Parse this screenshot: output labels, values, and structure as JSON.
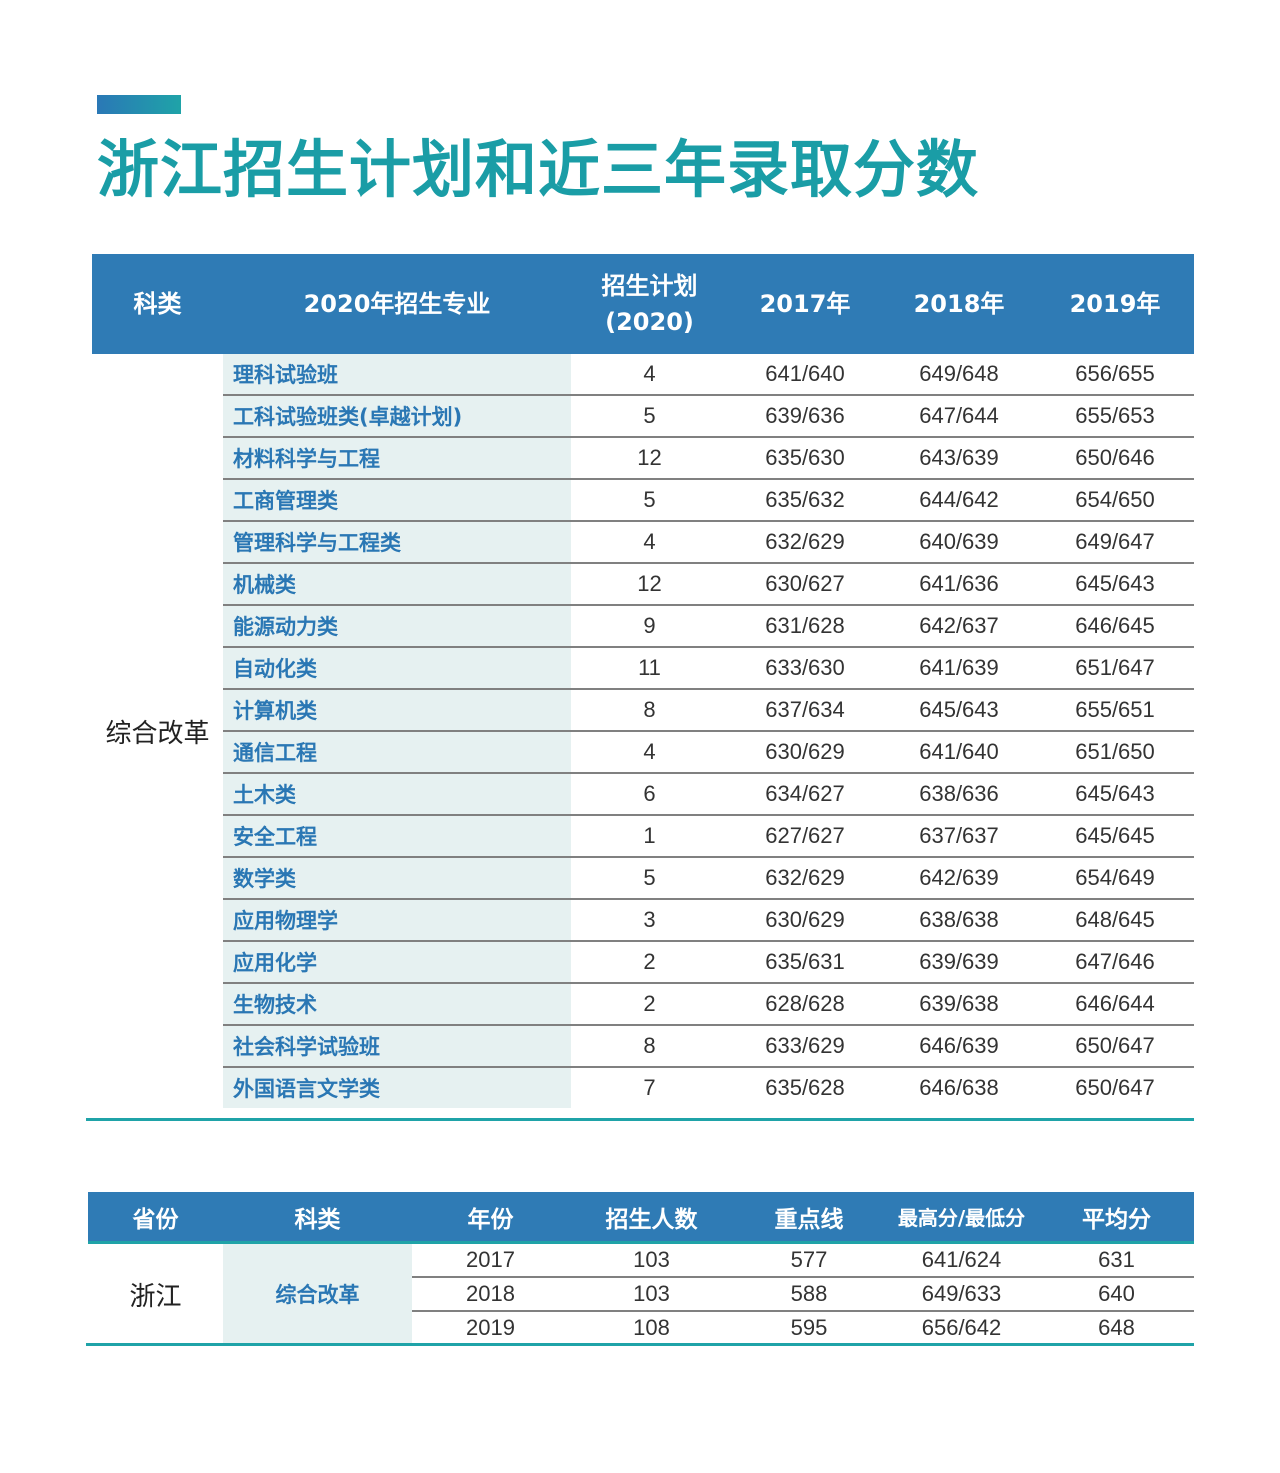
{
  "title": "浙江招生计划和近三年录取分数",
  "colors": {
    "title": "#1a9da6",
    "header_bg": "#2f7bb5",
    "major_text": "#2a77b4",
    "major_bg": "#e6f1f1",
    "rule": "#1fa3a8"
  },
  "plan_table": {
    "headers": {
      "category": "科类",
      "major": "2020年招生专业",
      "plan_line1": "招生计划",
      "plan_line2": "(2020)",
      "y2017": "2017年",
      "y2018": "2018年",
      "y2019": "2019年"
    },
    "category": "综合改革",
    "rows": [
      {
        "major": "理科试验班",
        "plan": "4",
        "y2017": "641/640",
        "y2018": "649/648",
        "y2019": "656/655"
      },
      {
        "major": "工科试验班类(卓越计划)",
        "plan": "5",
        "y2017": "639/636",
        "y2018": "647/644",
        "y2019": "655/653"
      },
      {
        "major": "材料科学与工程",
        "plan": "12",
        "y2017": "635/630",
        "y2018": "643/639",
        "y2019": "650/646"
      },
      {
        "major": "工商管理类",
        "plan": "5",
        "y2017": "635/632",
        "y2018": "644/642",
        "y2019": "654/650"
      },
      {
        "major": "管理科学与工程类",
        "plan": "4",
        "y2017": "632/629",
        "y2018": "640/639",
        "y2019": "649/647"
      },
      {
        "major": "机械类",
        "plan": "12",
        "y2017": "630/627",
        "y2018": "641/636",
        "y2019": "645/643"
      },
      {
        "major": "能源动力类",
        "plan": "9",
        "y2017": "631/628",
        "y2018": "642/637",
        "y2019": "646/645"
      },
      {
        "major": "自动化类",
        "plan": "11",
        "y2017": "633/630",
        "y2018": "641/639",
        "y2019": "651/647"
      },
      {
        "major": "计算机类",
        "plan": "8",
        "y2017": "637/634",
        "y2018": "645/643",
        "y2019": "655/651"
      },
      {
        "major": "通信工程",
        "plan": "4",
        "y2017": "630/629",
        "y2018": "641/640",
        "y2019": "651/650"
      },
      {
        "major": "土木类",
        "plan": "6",
        "y2017": "634/627",
        "y2018": "638/636",
        "y2019": "645/643"
      },
      {
        "major": "安全工程",
        "plan": "1",
        "y2017": "627/627",
        "y2018": "637/637",
        "y2019": "645/645"
      },
      {
        "major": "数学类",
        "plan": "5",
        "y2017": "632/629",
        "y2018": "642/639",
        "y2019": "654/649"
      },
      {
        "major": "应用物理学",
        "plan": "3",
        "y2017": "630/629",
        "y2018": "638/638",
        "y2019": "648/645"
      },
      {
        "major": "应用化学",
        "plan": "2",
        "y2017": "635/631",
        "y2018": "639/639",
        "y2019": "647/646"
      },
      {
        "major": "生物技术",
        "plan": "2",
        "y2017": "628/628",
        "y2018": "639/638",
        "y2019": "646/644"
      },
      {
        "major": "社会科学试验班",
        "plan": "8",
        "y2017": "633/629",
        "y2018": "646/639",
        "y2019": "650/647"
      },
      {
        "major": "外国语言文学类",
        "plan": "7",
        "y2017": "635/628",
        "y2018": "646/638",
        "y2019": "650/647"
      }
    ]
  },
  "history_table": {
    "headers": {
      "province": "省份",
      "category": "科类",
      "year": "年份",
      "enrolled": "招生人数",
      "key_line": "重点线",
      "max_min": "最高分/最低分",
      "average": "平均分"
    },
    "province": "浙江",
    "category": "综合改革",
    "rows": [
      {
        "year": "2017",
        "enrolled": "103",
        "key_line": "577",
        "max_min": "641/624",
        "average": "631"
      },
      {
        "year": "2018",
        "enrolled": "103",
        "key_line": "588",
        "max_min": "649/633",
        "average": "640"
      },
      {
        "year": "2019",
        "enrolled": "108",
        "key_line": "595",
        "max_min": "656/642",
        "average": "648"
      }
    ]
  }
}
